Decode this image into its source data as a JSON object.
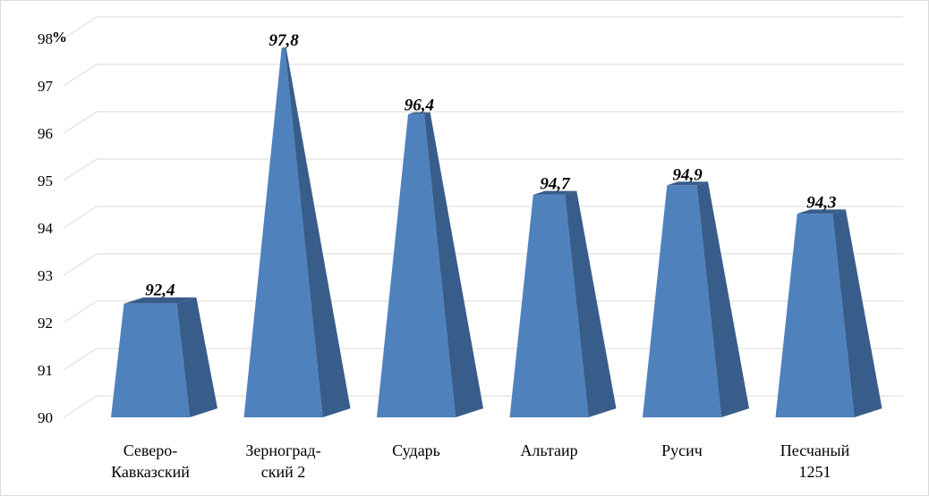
{
  "chart_data": {
    "type": "bar",
    "shape": "pyramid-3d",
    "ylabel": "%",
    "ylim": [
      90,
      98
    ],
    "yticks": [
      "90",
      "91",
      "92",
      "93",
      "94",
      "95",
      "96",
      "97",
      "98"
    ],
    "grid": true,
    "categories": [
      [
        "Северо-",
        "Кавказский"
      ],
      [
        "Зерноград-",
        "ский 2"
      ],
      [
        "Сударь"
      ],
      [
        "Альтаир"
      ],
      [
        "Русич"
      ],
      [
        "Песчаный",
        "1251"
      ]
    ],
    "values": [
      92.4,
      97.8,
      96.4,
      94.7,
      94.9,
      94.3
    ],
    "data_labels": [
      "92,4",
      "97,8",
      "96,4",
      "94,7",
      "94,9",
      "94,3"
    ],
    "colors": {
      "front": "#4f81bd",
      "side": "#385d8a",
      "grid": "#d9d9d9"
    }
  }
}
